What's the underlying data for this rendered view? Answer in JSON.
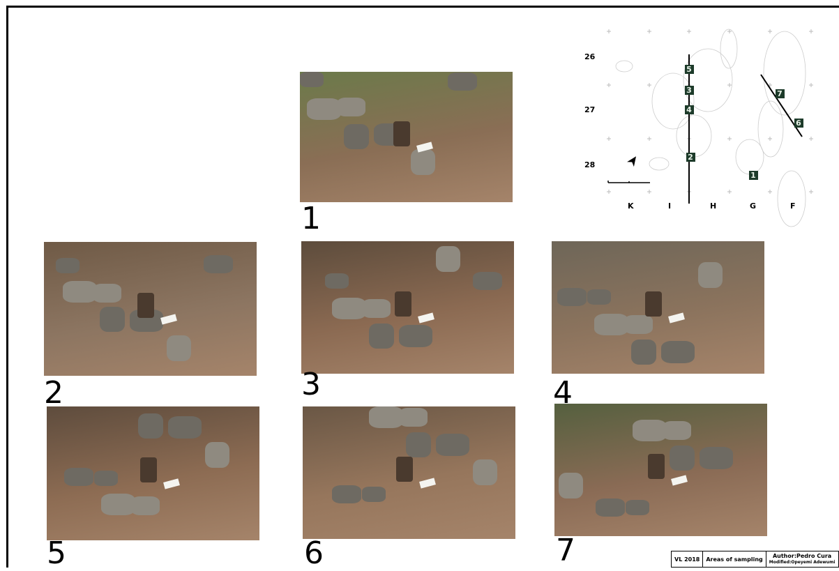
{
  "photos": [
    {
      "label": "1"
    },
    {
      "label": "2"
    },
    {
      "label": "3"
    },
    {
      "label": "4"
    },
    {
      "label": "5"
    },
    {
      "label": "6"
    },
    {
      "label": "7"
    }
  ],
  "map": {
    "row_labels": [
      "26",
      "27",
      "28"
    ],
    "column_labels": [
      "K",
      "I",
      "H",
      "G",
      "F"
    ],
    "markers": [
      "5",
      "3",
      "4",
      "2",
      "7",
      "6",
      "1"
    ]
  },
  "title_block": {
    "project": "VL 2018",
    "title": "Areas of sampling",
    "author": "Author:Pedro Cura",
    "modified": "Modified:Opeyemi Adewumi"
  }
}
